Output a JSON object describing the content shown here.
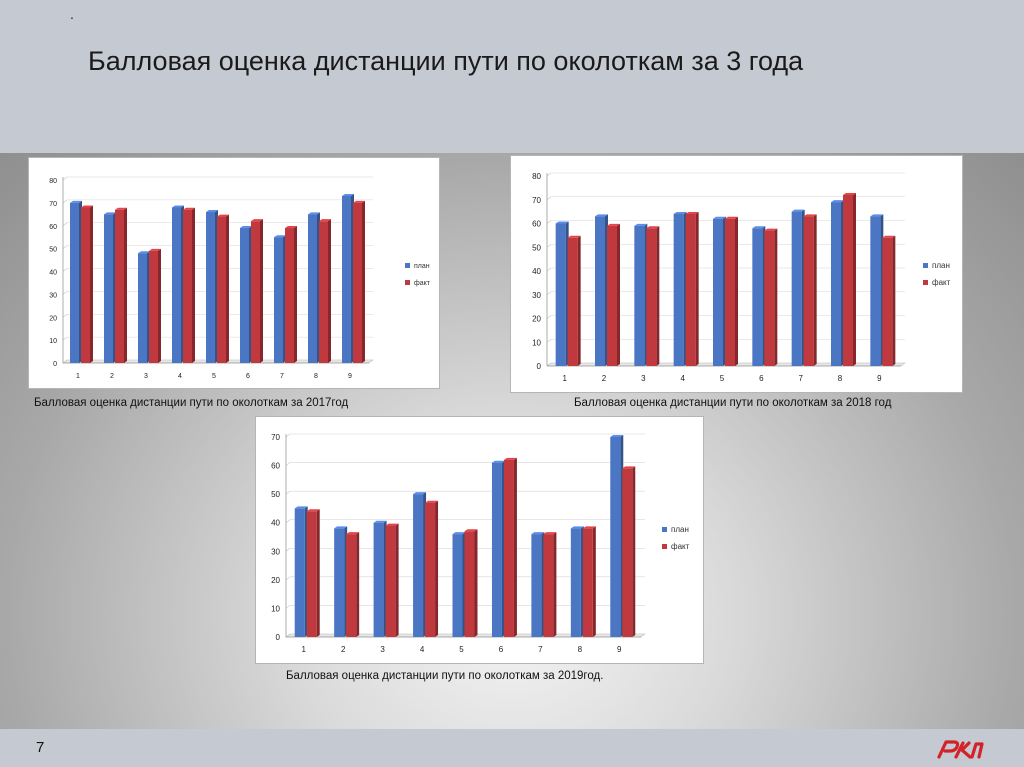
{
  "slide": {
    "dot": ".",
    "title": "Балловая оценка дистанции пути по околоткам за 3 года",
    "page_number": "7",
    "logo": "РЖД"
  },
  "colors": {
    "plan": "#4a76c4",
    "fact": "#c0393e"
  },
  "chart_data": [
    {
      "type": "bar",
      "caption": "Балловая оценка дистанции пути по околоткам за 2017год",
      "categories": [
        "1",
        "2",
        "3",
        "4",
        "5",
        "6",
        "7",
        "8",
        "9"
      ],
      "ylim": [
        0,
        80
      ],
      "yticks": [
        0,
        10,
        20,
        30,
        40,
        50,
        60,
        70,
        80
      ],
      "series": [
        {
          "name": "план",
          "values": [
            70,
            65,
            48,
            68,
            66,
            59,
            55,
            65,
            73
          ]
        },
        {
          "name": "факт",
          "values": [
            68,
            67,
            49,
            67,
            64,
            62,
            59,
            62,
            70
          ]
        }
      ]
    },
    {
      "type": "bar",
      "caption": "Балловая оценка дистанции пути по  околоткам за 2018 год",
      "categories": [
        "1",
        "2",
        "3",
        "4",
        "5",
        "6",
        "7",
        "8",
        "9"
      ],
      "ylim": [
        0,
        80
      ],
      "yticks": [
        0,
        10,
        20,
        30,
        40,
        50,
        60,
        70,
        80
      ],
      "series": [
        {
          "name": "план",
          "values": [
            60,
            63,
            59,
            64,
            62,
            58,
            65,
            69,
            63
          ]
        },
        {
          "name": "факт",
          "values": [
            54,
            59,
            58,
            64,
            62,
            57,
            63,
            72,
            54
          ]
        }
      ]
    },
    {
      "type": "bar",
      "caption": "Балловая оценка дистанции пути по околоткам за 2019год.",
      "categories": [
        "1",
        "2",
        "3",
        "4",
        "5",
        "6",
        "7",
        "8",
        "9"
      ],
      "ylim": [
        0,
        70
      ],
      "yticks": [
        0,
        10,
        20,
        30,
        40,
        50,
        60,
        70
      ],
      "series": [
        {
          "name": "план",
          "values": [
            45,
            38,
            40,
            50,
            36,
            61,
            36,
            38,
            70
          ]
        },
        {
          "name": "факт",
          "values": [
            44,
            36,
            39,
            47,
            37,
            62,
            36,
            38,
            59
          ]
        }
      ]
    }
  ]
}
